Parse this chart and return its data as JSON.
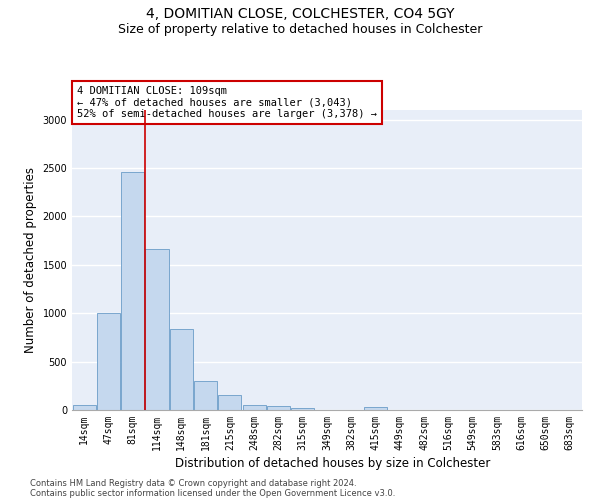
{
  "title": "4, DOMITIAN CLOSE, COLCHESTER, CO4 5GY",
  "subtitle": "Size of property relative to detached houses in Colchester",
  "xlabel": "Distribution of detached houses by size in Colchester",
  "ylabel": "Number of detached properties",
  "categories": [
    "14sqm",
    "47sqm",
    "81sqm",
    "114sqm",
    "148sqm",
    "181sqm",
    "215sqm",
    "248sqm",
    "282sqm",
    "315sqm",
    "349sqm",
    "382sqm",
    "415sqm",
    "449sqm",
    "482sqm",
    "516sqm",
    "549sqm",
    "583sqm",
    "616sqm",
    "650sqm",
    "683sqm"
  ],
  "values": [
    55,
    1000,
    2460,
    1660,
    840,
    300,
    150,
    55,
    40,
    25,
    0,
    0,
    35,
    0,
    0,
    0,
    0,
    0,
    0,
    0,
    0
  ],
  "bar_color": "#c5d8ee",
  "bar_edge_color": "#6a9cc8",
  "vline_x": 2.5,
  "vline_color": "#cc0000",
  "annotation_text": "4 DOMITIAN CLOSE: 109sqm\n← 47% of detached houses are smaller (3,043)\n52% of semi-detached houses are larger (3,378) →",
  "annotation_box_color": "#ffffff",
  "annotation_box_edge_color": "#cc0000",
  "ylim": [
    0,
    3100
  ],
  "yticks": [
    0,
    500,
    1000,
    1500,
    2000,
    2500,
    3000
  ],
  "footer_line1": "Contains HM Land Registry data © Crown copyright and database right 2024.",
  "footer_line2": "Contains public sector information licensed under the Open Government Licence v3.0.",
  "background_color": "#ffffff",
  "plot_bg_color": "#e8eef8",
  "grid_color": "#ffffff",
  "title_fontsize": 10,
  "subtitle_fontsize": 9,
  "tick_fontsize": 7,
  "ylabel_fontsize": 8.5,
  "xlabel_fontsize": 8.5,
  "annotation_fontsize": 7.5,
  "footer_fontsize": 6
}
